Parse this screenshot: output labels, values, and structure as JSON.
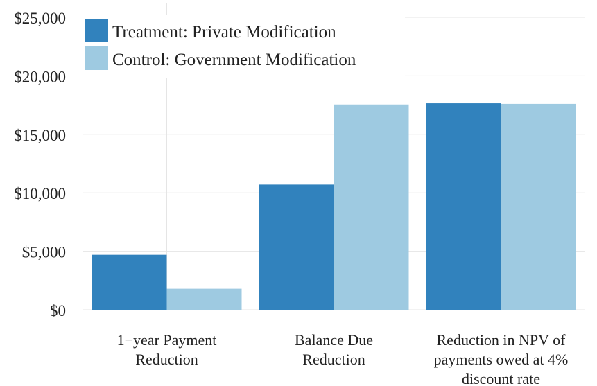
{
  "chart_data": {
    "type": "bar",
    "title": "",
    "xlabel": "",
    "ylabel": "",
    "categories": [
      [
        "1−year Payment",
        "Reduction"
      ],
      [
        "Balance Due",
        "Reduction"
      ],
      [
        "Reduction in NPV of",
        "payments owed at 4%",
        "discount rate"
      ]
    ],
    "series": [
      {
        "name": "Treatment: Private Modification",
        "color": "#3182bd",
        "values": [
          4700,
          10700,
          17650
        ]
      },
      {
        "name": "Control: Government Modification",
        "color": "#9ecae1",
        "values": [
          1800,
          17550,
          17600
        ]
      }
    ],
    "y_ticks": [
      {
        "value": 0,
        "label": "$0"
      },
      {
        "value": 5000,
        "label": "$5,000"
      },
      {
        "value": 10000,
        "label": "$10,000"
      },
      {
        "value": 15000,
        "label": "$15,000"
      },
      {
        "value": 20000,
        "label": "$20,000"
      },
      {
        "value": 25000,
        "label": "$25,000"
      }
    ],
    "ylim": [
      0,
      25000
    ],
    "grid": true,
    "grid_color": "#e5e5e5",
    "legend_position": "top-left"
  }
}
